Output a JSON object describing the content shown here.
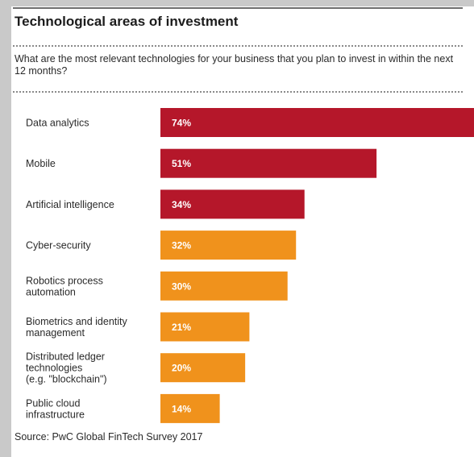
{
  "header": {
    "title": "Technological areas of investment",
    "subtitle": "What are the most relevant technologies for your business that you plan to invest in within the next 12 months?"
  },
  "footer": {
    "source": "Source: PwC Global FinTech Survey 2017"
  },
  "colors": {
    "high": "#b5172a",
    "low": "#f0921c",
    "bar_text": "#ffffff"
  },
  "chart_data": {
    "type": "bar",
    "orientation": "horizontal",
    "title": "Technological areas of investment",
    "subtitle": "What are the most relevant technologies for your business that you plan to invest in within the next 12 months?",
    "categories": [
      [
        "Data analytics"
      ],
      [
        "Mobile"
      ],
      [
        "Artificial intelligence"
      ],
      [
        "Cyber-security"
      ],
      [
        "Robotics process",
        "automation"
      ],
      [
        "Biometrics and identity",
        "management"
      ],
      [
        "Distributed ledger",
        "technologies",
        "(e.g. \"blockchain\")"
      ],
      [
        "Public cloud",
        "infrastructure"
      ]
    ],
    "values": [
      74,
      51,
      34,
      32,
      30,
      21,
      20,
      14
    ],
    "value_labels": [
      "74%",
      "51%",
      "34%",
      "32%",
      "30%",
      "21%",
      "20%",
      "14%"
    ],
    "bar_color_group": [
      "high",
      "high",
      "high",
      "low",
      "low",
      "low",
      "low",
      "low"
    ],
    "unit": "%",
    "xlim": [
      0,
      74
    ],
    "grid": false,
    "legend": "none",
    "source": "Source: PwC Global FinTech Survey 2017"
  }
}
